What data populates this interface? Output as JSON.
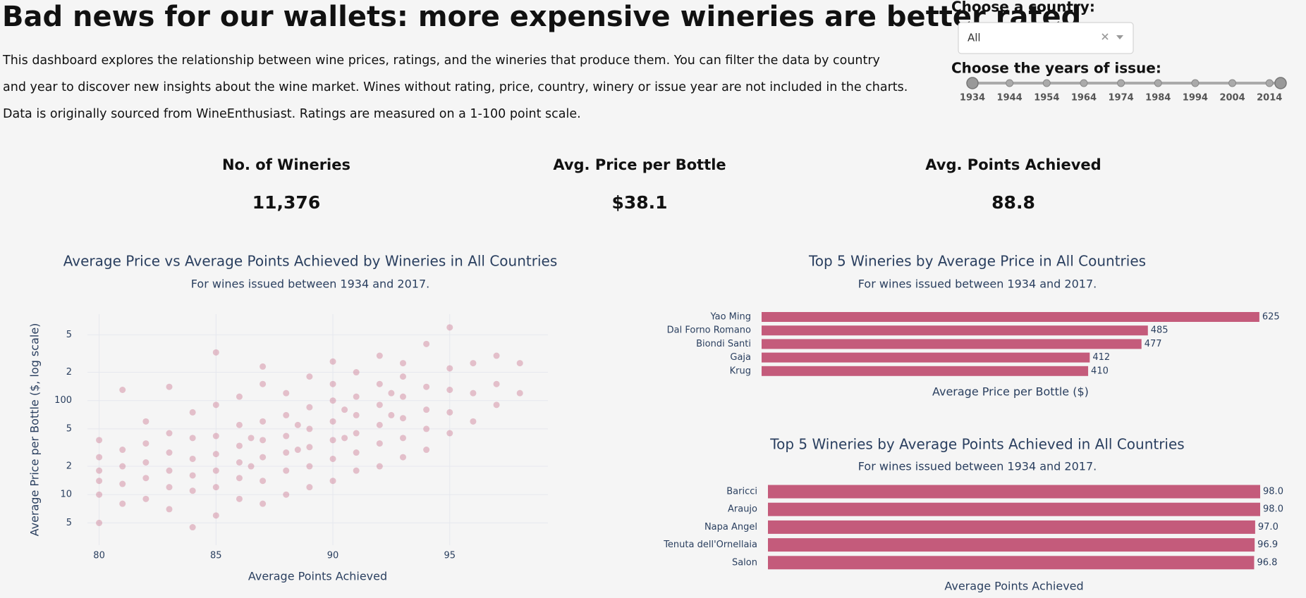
{
  "header": {
    "title": "Bad news for our wallets: more expensive wineries are better rated",
    "paragraphs": [
      "This dashboard explores the relationship between wine prices, ratings, and the wineries that produce them. You can filter the data by country",
      "and year to discover new insights about the wine market. Wines without rating, price, country, winery or issue year are not included in the charts.",
      "Data is originally sourced from WineEnthusiast. Ratings are measured on a 1-100 point scale."
    ]
  },
  "filters": {
    "country_label": "Choose a country:",
    "country_value": "All",
    "years_label": "Choose the years of issue:",
    "years_min": 1934,
    "years_max": 2017,
    "years_selected": [
      1934,
      2017
    ],
    "years_marks": [
      1934,
      1944,
      1954,
      1964,
      1974,
      1984,
      1994,
      2004,
      2014
    ]
  },
  "kpis": [
    {
      "label": "No. of Wineries",
      "value": "11,376"
    },
    {
      "label": "Avg. Price per Bottle",
      "value": "$38.1"
    },
    {
      "label": "Avg. Points Achieved",
      "value": "88.8"
    }
  ],
  "chart_data": [
    {
      "type": "scatter",
      "title": "Average Price vs Average Points Achieved by Wineries in All Countries",
      "subtitle": "For wines issued between 1934 and 2017.",
      "x_label": "Average Points Achieved",
      "y_label": "Average Price per Bottle ($, log scale)",
      "log_y": true,
      "grid": true,
      "color": "#c45b7b",
      "xlim": [
        79.5,
        99.2
      ],
      "xticks": [
        80,
        85,
        90,
        95
      ],
      "ylim": [
        2.9,
        830
      ],
      "yticks": [
        5,
        10,
        {
          "value": 20,
          "label": "2"
        },
        {
          "value": 50,
          "label": "5"
        },
        100,
        {
          "value": 200,
          "label": "2"
        },
        {
          "value": 500,
          "label": "5"
        }
      ],
      "x": [
        80,
        80,
        80,
        80,
        80,
        80,
        81,
        81,
        81,
        81,
        81,
        82,
        82,
        82,
        82,
        82,
        83,
        83,
        83,
        83,
        83,
        83,
        84,
        84,
        84,
        84,
        84,
        84,
        85,
        85,
        85,
        85,
        85,
        85,
        85,
        86,
        86,
        86,
        86,
        86,
        86,
        86.5,
        86.5,
        87,
        87,
        87,
        87,
        87,
        87,
        87,
        88,
        88,
        88,
        88,
        88,
        88,
        88.5,
        88.5,
        89,
        89,
        89,
        89,
        89,
        89,
        90,
        90,
        90,
        90,
        90,
        90,
        90,
        90.5,
        90.5,
        91,
        91,
        91,
        91,
        91,
        91,
        92,
        92,
        92,
        92,
        92,
        92,
        92.5,
        92.5,
        93,
        93,
        93,
        93,
        93,
        93,
        94,
        94,
        94,
        94,
        94,
        95,
        95,
        95,
        95,
        95,
        96,
        96,
        96,
        97,
        97,
        97,
        98,
        98
      ],
      "series": [
        {
          "name": "Wineries",
          "values": [
            5,
            10,
            14,
            18,
            25,
            38,
            8,
            13,
            20,
            30,
            130,
            9,
            15,
            22,
            35,
            60,
            7,
            12,
            18,
            28,
            45,
            140,
            4.5,
            11,
            16,
            24,
            40,
            75,
            6,
            12,
            18,
            27,
            42,
            90,
            325,
            9,
            15,
            22,
            33,
            55,
            110,
            20,
            40,
            8,
            14,
            25,
            38,
            60,
            150,
            230,
            10,
            18,
            28,
            42,
            70,
            120,
            30,
            55,
            12,
            20,
            32,
            50,
            85,
            180,
            14,
            24,
            38,
            60,
            100,
            150,
            260,
            40,
            80,
            18,
            28,
            45,
            70,
            110,
            200,
            20,
            35,
            55,
            90,
            150,
            300,
            70,
            120,
            25,
            40,
            65,
            110,
            180,
            250,
            30,
            50,
            80,
            140,
            400,
            45,
            75,
            130,
            220,
            600,
            60,
            120,
            250,
            90,
            150,
            300,
            120,
            250
          ]
        }
      ]
    },
    {
      "type": "hbar",
      "title": "Top 5 Wineries by Average Price in All Countries",
      "subtitle": "For wines issued between 1934 and 2017.",
      "x_label": "Average Price per Bottle ($)",
      "color": "#c45b7b",
      "xlim": [
        0,
        680
      ],
      "categories": [
        "Yao Ming",
        "Dal Forno Romano",
        "Biondi Santi",
        "Gaja",
        "Krug"
      ],
      "values": [
        625,
        485,
        477,
        412,
        410
      ]
    },
    {
      "type": "hbar",
      "title": "Top 5 Wineries by Average Points Achieved in All Countries",
      "subtitle": "For wines issued between 1934 and 2017.",
      "x_label": "Average Points Achieved",
      "color": "#c45b7b",
      "xlim": [
        0,
        106
      ],
      "categories": [
        "Baricci",
        "Araujo",
        "Napa Angel",
        "Tenuta dell'Ornellaia",
        "Salon"
      ],
      "values": [
        98,
        98,
        97,
        96.9,
        96.8
      ],
      "value_labels": [
        "98.0",
        "98.0",
        "97.0",
        "96.9",
        "96.8"
      ]
    }
  ]
}
